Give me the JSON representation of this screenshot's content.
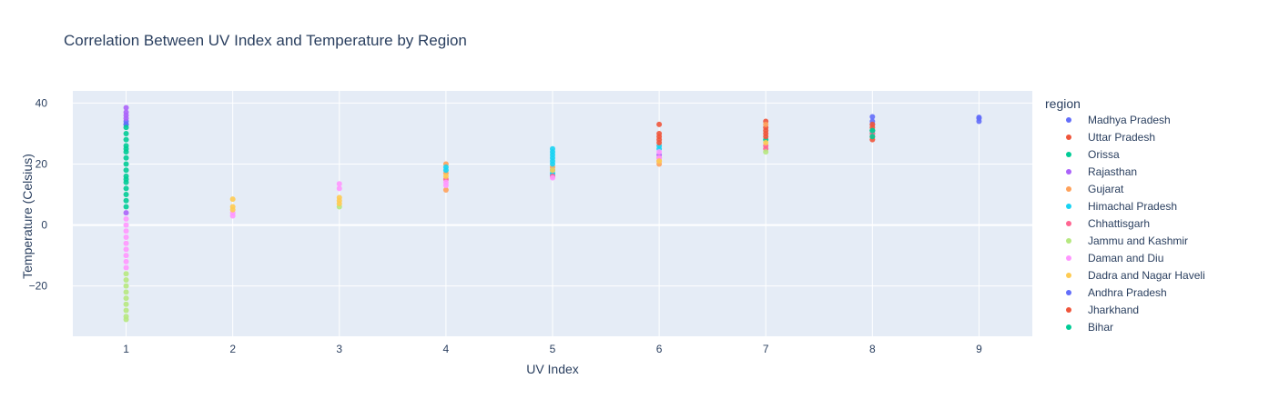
{
  "chart_data": {
    "type": "scatter",
    "title": "Correlation Between UV Index and Temperature by Region",
    "xlabel": "UV Index",
    "ylabel": "Temperature (Celsius)",
    "xlim": [
      0.5,
      9.5
    ],
    "ylim": [
      -36.5,
      44
    ],
    "xticks": [
      1,
      2,
      3,
      4,
      5,
      6,
      7,
      8,
      9
    ],
    "yticks": [
      -20,
      0,
      20,
      40
    ],
    "grid": true,
    "legend_title": "region",
    "legend_position": "right",
    "series": [
      {
        "name": "Madhya Pradesh",
        "color": "#636efa",
        "points": [
          [
            1,
            33
          ],
          [
            1,
            34
          ],
          [
            8,
            35.5
          ],
          [
            8,
            34
          ],
          [
            9,
            34
          ],
          [
            9,
            35.3
          ]
        ]
      },
      {
        "name": "Uttar Pradesh",
        "color": "#EF553B",
        "points": [
          [
            6,
            33
          ],
          [
            6,
            29
          ],
          [
            7,
            34
          ],
          [
            7,
            32
          ],
          [
            7,
            30
          ],
          [
            8,
            31
          ],
          [
            8,
            29
          ]
        ]
      },
      {
        "name": "Orissa",
        "color": "#00cc96",
        "points": [
          [
            1,
            25
          ],
          [
            1,
            20
          ],
          [
            1,
            15
          ],
          [
            1,
            12
          ],
          [
            8,
            30
          ],
          [
            8,
            31
          ],
          [
            7,
            28
          ]
        ]
      },
      {
        "name": "Rajasthan",
        "color": "#ab63fa",
        "points": [
          [
            1,
            38.5
          ],
          [
            1,
            37
          ],
          [
            1,
            36
          ],
          [
            1,
            35
          ],
          [
            1,
            4
          ],
          [
            6,
            23
          ]
        ]
      },
      {
        "name": "Gujarat",
        "color": "#FFA15A",
        "points": [
          [
            4,
            20
          ],
          [
            4,
            17
          ],
          [
            4,
            11.5
          ],
          [
            5,
            19
          ],
          [
            6,
            20
          ],
          [
            6,
            21
          ],
          [
            7,
            33
          ]
        ]
      },
      {
        "name": "Himachal Pradesh",
        "color": "#19d3f3",
        "points": [
          [
            4,
            19
          ],
          [
            4,
            18
          ],
          [
            5,
            25
          ],
          [
            5,
            24
          ],
          [
            5,
            23
          ],
          [
            5,
            22
          ],
          [
            5,
            21
          ],
          [
            5,
            20
          ],
          [
            5,
            18
          ],
          [
            5,
            17
          ],
          [
            5,
            16.5
          ],
          [
            6,
            25
          ],
          [
            6,
            26
          ]
        ]
      },
      {
        "name": "Chhattisgarh",
        "color": "#FF6692",
        "points": [
          [
            4,
            15
          ],
          [
            5,
            16
          ],
          [
            6,
            22
          ],
          [
            7,
            25
          ],
          [
            7,
            26
          ],
          [
            8,
            30
          ]
        ]
      },
      {
        "name": "Jammu and Kashmir",
        "color": "#B6E880",
        "points": [
          [
            1,
            -16
          ],
          [
            1,
            -18
          ],
          [
            1,
            -20
          ],
          [
            1,
            -22
          ],
          [
            1,
            -24
          ],
          [
            1,
            -26
          ],
          [
            1,
            -28
          ],
          [
            1,
            -30
          ],
          [
            1,
            -31
          ],
          [
            3,
            6
          ],
          [
            7,
            24
          ]
        ]
      },
      {
        "name": "Daman and Diu",
        "color": "#FF97FF",
        "points": [
          [
            1,
            2
          ],
          [
            1,
            0
          ],
          [
            1,
            -2
          ],
          [
            1,
            -4
          ],
          [
            1,
            -6
          ],
          [
            1,
            -8
          ],
          [
            1,
            -10
          ],
          [
            1,
            -12
          ],
          [
            1,
            -14
          ],
          [
            2,
            3
          ],
          [
            2,
            4
          ],
          [
            3,
            13.5
          ],
          [
            3,
            12
          ],
          [
            4,
            13
          ],
          [
            4,
            14
          ],
          [
            5,
            15.5
          ],
          [
            6,
            24
          ],
          [
            6,
            22
          ]
        ]
      },
      {
        "name": "Dadra and Nagar Haveli",
        "color": "#FECB52",
        "points": [
          [
            2,
            8.5
          ],
          [
            2,
            6
          ],
          [
            2,
            5
          ],
          [
            3,
            9
          ],
          [
            3,
            8
          ],
          [
            3,
            7
          ],
          [
            4,
            16
          ],
          [
            5,
            18
          ],
          [
            6,
            21
          ],
          [
            7,
            27
          ]
        ]
      },
      {
        "name": "Andhra Pradesh",
        "color": "#636efa",
        "points": [
          [
            1,
            33
          ],
          [
            8,
            33
          ],
          [
            9,
            35
          ]
        ]
      },
      {
        "name": "Jharkhand",
        "color": "#EF553B",
        "points": [
          [
            6,
            27
          ],
          [
            6,
            28
          ],
          [
            6,
            30
          ],
          [
            7,
            29
          ],
          [
            7,
            31
          ],
          [
            8,
            28
          ],
          [
            8,
            32
          ],
          [
            8,
            33
          ]
        ]
      },
      {
        "name": "Bihar",
        "color": "#00cc96",
        "points": [
          [
            1,
            32
          ],
          [
            1,
            30
          ],
          [
            1,
            28
          ],
          [
            1,
            26
          ],
          [
            1,
            24
          ],
          [
            1,
            22
          ],
          [
            1,
            18
          ],
          [
            1,
            16
          ],
          [
            1,
            14
          ],
          [
            1,
            10
          ],
          [
            1,
            8
          ],
          [
            1,
            6
          ],
          [
            8,
            29
          ],
          [
            8,
            31
          ]
        ]
      }
    ]
  }
}
